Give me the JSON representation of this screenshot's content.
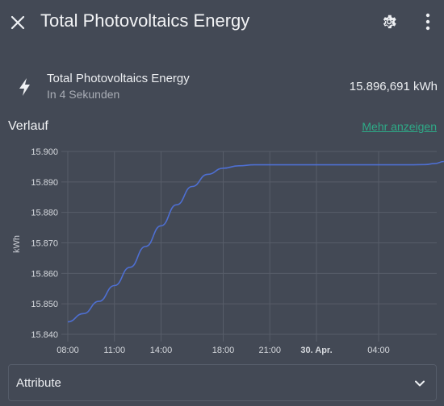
{
  "header": {
    "title": "Total Photovoltaics Energy",
    "close_icon": "close-icon",
    "settings_icon": "gear-icon",
    "menu_icon": "more-vertical-icon"
  },
  "entity": {
    "icon": "lightning-bolt-icon",
    "name": "Total Photovoltaics Energy",
    "secondary": "In 4 Sekunden",
    "state": "15.896,691 kWh"
  },
  "history": {
    "title": "Verlauf",
    "more_link": "Mehr anzeigen"
  },
  "chart_data": {
    "type": "line",
    "ylabel": "kWh",
    "xlabel": "",
    "title": "",
    "ylim": [
      15.838,
      15.9
    ],
    "yticks": [
      15.9,
      15.89,
      15.88,
      15.87,
      15.86,
      15.85,
      15.84
    ],
    "ytick_labels": [
      "15.900",
      "15.890",
      "15.880",
      "15.870",
      "15.860",
      "15.850",
      "15.840"
    ],
    "xlim_hours": [
      8,
      32.2
    ],
    "xticks": [
      {
        "hour": 8,
        "label": "08:00",
        "bold": false
      },
      {
        "hour": 11,
        "label": "11:00",
        "bold": false
      },
      {
        "hour": 14,
        "label": "14:00",
        "bold": false
      },
      {
        "hour": 18,
        "label": "18:00",
        "bold": false
      },
      {
        "hour": 21,
        "label": "21:00",
        "bold": false
      },
      {
        "hour": 24,
        "label": "30. Apr.",
        "bold": true
      },
      {
        "hour": 28,
        "label": "04:00",
        "bold": false
      }
    ],
    "series": [
      {
        "color": "#4e6fd2",
        "points": [
          [
            8.0,
            15.8441
          ],
          [
            9.0,
            15.8468
          ],
          [
            10.0,
            15.8508
          ],
          [
            11.0,
            15.856
          ],
          [
            12.0,
            15.862
          ],
          [
            13.0,
            15.8688
          ],
          [
            14.0,
            15.8756
          ],
          [
            15.0,
            15.8825
          ],
          [
            16.0,
            15.8885
          ],
          [
            17.0,
            15.8925
          ],
          [
            18.0,
            15.8945
          ],
          [
            19.0,
            15.8953
          ],
          [
            20.0,
            15.8956
          ],
          [
            21.0,
            15.8956
          ],
          [
            24.0,
            15.8956
          ],
          [
            28.0,
            15.8956
          ],
          [
            30.0,
            15.8956
          ],
          [
            31.0,
            15.8957
          ],
          [
            31.6,
            15.896
          ],
          [
            32.2,
            15.8967
          ]
        ]
      }
    ]
  },
  "attributes": {
    "label": "Attribute",
    "chevron_icon": "chevron-down-icon"
  }
}
